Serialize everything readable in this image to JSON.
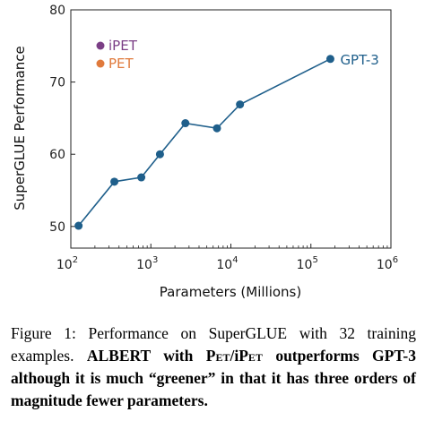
{
  "chart_data": {
    "type": "line",
    "xscale": "log",
    "xlabel": "Parameters (Millions)",
    "ylabel": "SuperGLUE Performance",
    "xlim": [
      100,
      1000000
    ],
    "ylim": [
      47,
      80
    ],
    "x_ticks": [
      {
        "base": "10",
        "exp": "2",
        "value": 100
      },
      {
        "base": "10",
        "exp": "3",
        "value": 1000
      },
      {
        "base": "10",
        "exp": "4",
        "value": 10000
      },
      {
        "base": "10",
        "exp": "5",
        "value": 100000
      },
      {
        "base": "10",
        "exp": "6",
        "value": 1000000
      }
    ],
    "y_ticks": [
      50,
      60,
      70,
      80
    ],
    "series": [
      {
        "name": "GPT-3",
        "color": "#1f5f8b",
        "x": [
          125,
          350,
          760,
          1300,
          2700,
          6700,
          13000,
          175000
        ],
        "y": [
          50.1,
          56.2,
          56.8,
          60.0,
          64.3,
          63.6,
          66.9,
          73.2
        ]
      }
    ],
    "legend": [
      {
        "label": "iPET",
        "color": "#7b3f86"
      },
      {
        "label": "PET",
        "color": "#e07a3c"
      }
    ],
    "legend_position": "top-left"
  },
  "caption": {
    "prefix": "Figure 1: Performance on SuperGLUE with 32 training examples. ",
    "bold_1": "ALBERT with ",
    "pet_sc": "Pet",
    "slash": "/i",
    "ipet_sc": "Pet",
    "bold_2": " outperforms GPT-3 although it is much “greener” in that it has three orders of magnitude fewer parameters."
  }
}
